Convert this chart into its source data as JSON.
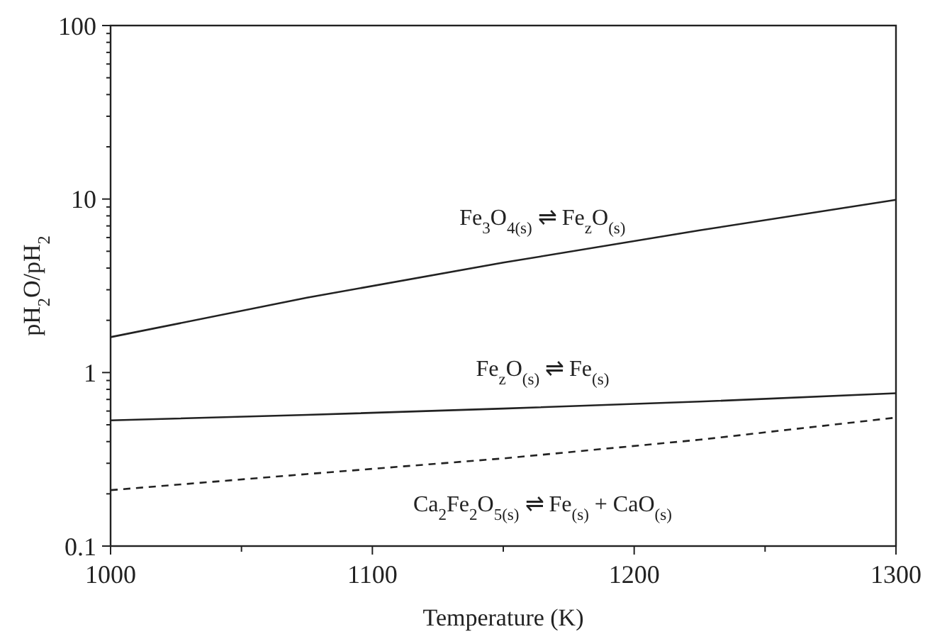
{
  "chart_data": {
    "type": "line",
    "xlabel": "Temperature (K)",
    "ylabel": "pH$_{2}$O/pH$_{2}$",
    "log": "y",
    "xlim": [
      1000,
      1300
    ],
    "ylim": [
      0.1,
      100
    ],
    "xticks": [
      1000,
      {
        "value": 1050,
        "label": null
      },
      1100,
      {
        "value": 1150,
        "label": null
      },
      1200,
      {
        "value": 1250,
        "label": null
      },
      1300
    ],
    "yticks": [
      0.1,
      {
        "value": 0.2,
        "label": null
      },
      {
        "value": 0.3,
        "label": null
      },
      {
        "value": 0.4,
        "label": null
      },
      {
        "value": 0.5,
        "label": null
      },
      {
        "value": 0.6,
        "label": null
      },
      {
        "value": 0.7,
        "label": null
      },
      {
        "value": 0.8,
        "label": null
      },
      {
        "value": 0.9,
        "label": null
      },
      1,
      {
        "value": 2,
        "label": null
      },
      {
        "value": 3,
        "label": null
      },
      {
        "value": 4,
        "label": null
      },
      {
        "value": 5,
        "label": null
      },
      {
        "value": 6,
        "label": null
      },
      {
        "value": 7,
        "label": null
      },
      {
        "value": 8,
        "label": null
      },
      {
        "value": 9,
        "label": null
      },
      10,
      {
        "value": 20,
        "label": null
      },
      {
        "value": 30,
        "label": null
      },
      {
        "value": 40,
        "label": null
      },
      {
        "value": 50,
        "label": null
      },
      {
        "value": 60,
        "label": null
      },
      {
        "value": 70,
        "label": null
      },
      {
        "value": 80,
        "label": null
      },
      {
        "value": 90,
        "label": null
      },
      100
    ],
    "grid": false,
    "marker": "none",
    "x": [
      1000,
      1075,
      1150,
      1225,
      1300
    ],
    "series": [
      {
        "name": "Fe$_{3}$O$_{4(s)}$ ⇌ Fe$_{z}$O$_{(s)}$",
        "color": "#222222",
        "line_style": "solid",
        "values": [
          1.6,
          2.7,
          4.3,
          6.6,
          9.9
        ]
      },
      {
        "name": "Fe$_{z}$O$_{(s)}$ ⇌ Fe$_{(s)}$",
        "color": "#222222",
        "line_style": "solid",
        "values": [
          0.53,
          0.57,
          0.62,
          0.68,
          0.76
        ]
      },
      {
        "name": "Ca$_{2}$Fe$_{2}$O$_{5(s)}$ ⇌ Fe$_{(s)}$ + CaO$_{(s)}$",
        "color": "#222222",
        "line_style": "dashed",
        "values": [
          0.21,
          0.26,
          0.32,
          0.41,
          0.55
        ]
      }
    ]
  }
}
